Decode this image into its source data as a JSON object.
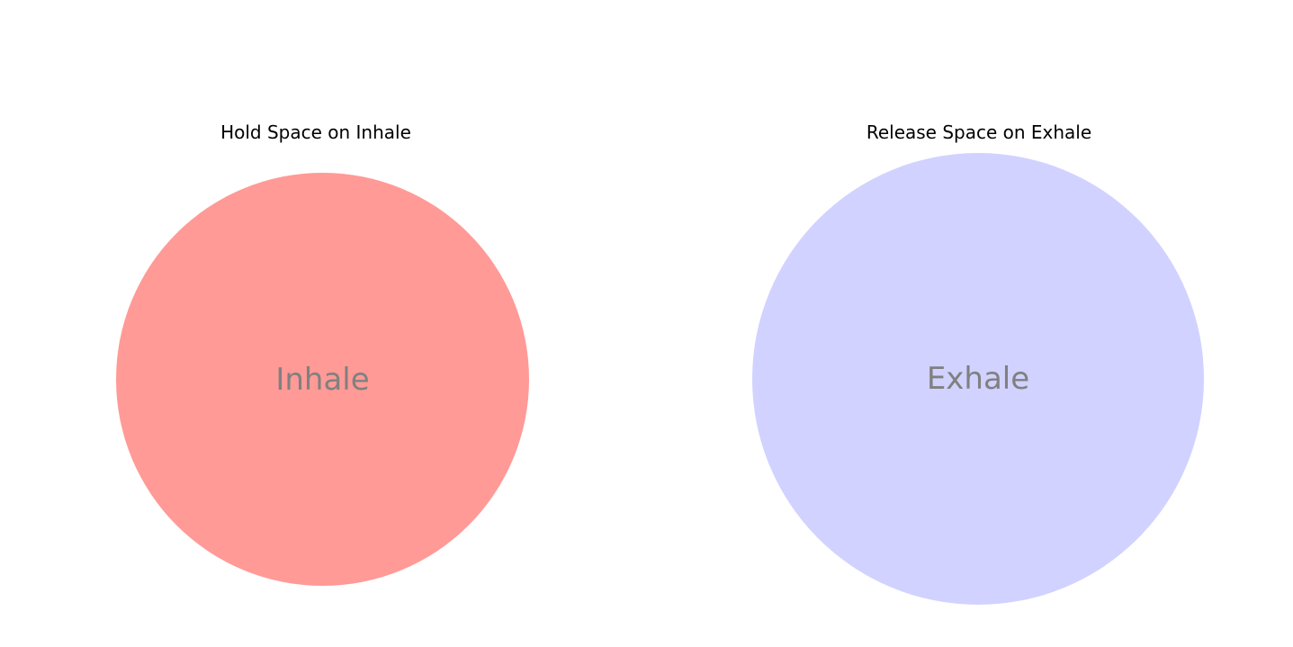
{
  "inhale": {
    "title": "Hold Space on Inhale",
    "label": "Inhale",
    "color": "#ff9a96"
  },
  "exhale": {
    "title": "Release Space on Exhale",
    "label": "Exhale",
    "color": "#d1d2ff"
  }
}
